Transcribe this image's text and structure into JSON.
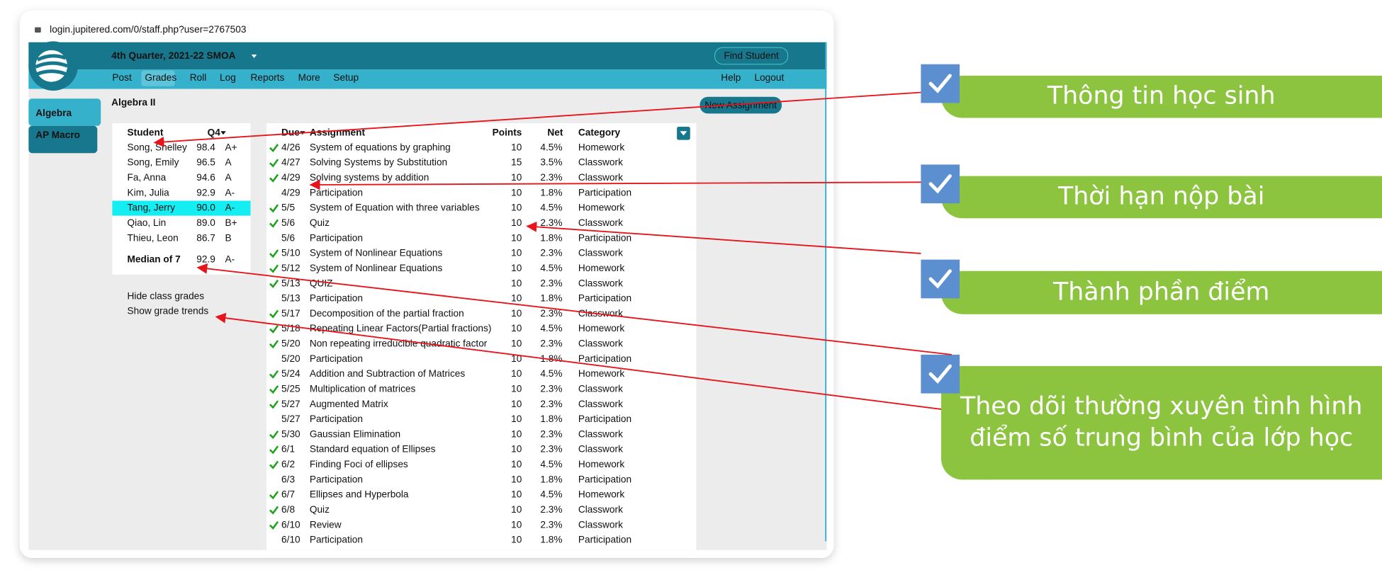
{
  "url": "login.jupitered.com/0/staff.php?user=2767503",
  "header": {
    "term": "4th Quarter, 2021-22 SMOA",
    "find_student": "Find Student",
    "nav": [
      "Post",
      "Grades",
      "Roll",
      "Log",
      "Reports",
      "More",
      "Setup"
    ],
    "help": "Help",
    "logout": "Logout"
  },
  "sidebar": [
    "Algebra",
    "AP Macro"
  ],
  "class_title": "Algebra II",
  "new_assignment": "New Assignment",
  "students": {
    "columns": [
      "Student",
      "Q4"
    ],
    "rows": [
      [
        "Song, Shelley",
        "98.4",
        "A+"
      ],
      [
        "Song, Emily",
        "96.5",
        "A"
      ],
      [
        "Fa, Anna",
        "94.6",
        "A"
      ],
      [
        "Kim, Julia",
        "92.9",
        "A-"
      ],
      [
        "Tang, Jerry",
        "90.0",
        "A-"
      ],
      [
        "Qiao, Lin",
        "89.0",
        "B+"
      ],
      [
        "Thieu, Leon",
        "86.7",
        "B"
      ]
    ],
    "highlighted_row": 4,
    "median": [
      "Median of 7",
      "92.9",
      "A-"
    ]
  },
  "links": [
    "Hide class grades",
    "Show grade trends"
  ],
  "assignments": {
    "columns": [
      "Due",
      "Assignment",
      "Points",
      "Net",
      "Category"
    ],
    "rows": [
      {
        "checked": true,
        "due": "4/26",
        "assignment": "System of equations by graphing",
        "points": "10",
        "net": "4.5%",
        "category": "Homework"
      },
      {
        "checked": true,
        "due": "4/27",
        "assignment": "Solving Systems by Substitution",
        "points": "15",
        "net": "3.5%",
        "category": "Classwork"
      },
      {
        "checked": true,
        "due": "4/29",
        "assignment": "Solving systems by addition",
        "points": "10",
        "net": "2.3%",
        "category": "Classwork"
      },
      {
        "checked": false,
        "due": "4/29",
        "assignment": "Participation",
        "points": "10",
        "net": "1.8%",
        "category": "Participation"
      },
      {
        "checked": true,
        "due": "5/5",
        "assignment": "System of Equation with three variables",
        "points": "10",
        "net": "4.5%",
        "category": "Homework"
      },
      {
        "checked": true,
        "due": "5/6",
        "assignment": "Quiz",
        "points": "10",
        "net": "2.3%",
        "category": "Classwork"
      },
      {
        "checked": false,
        "due": "5/6",
        "assignment": "Participation",
        "points": "10",
        "net": "1.8%",
        "category": "Participation"
      },
      {
        "checked": true,
        "due": "5/10",
        "assignment": "System of Nonlinear Equations",
        "points": "10",
        "net": "2.3%",
        "category": "Classwork"
      },
      {
        "checked": true,
        "due": "5/12",
        "assignment": "System of Nonlinear Equations",
        "points": "10",
        "net": "4.5%",
        "category": "Homework"
      },
      {
        "checked": true,
        "due": "5/13",
        "assignment": "QUIZ",
        "points": "10",
        "net": "2.3%",
        "category": "Classwork"
      },
      {
        "checked": false,
        "due": "5/13",
        "assignment": "Participation",
        "points": "10",
        "net": "1.8%",
        "category": "Participation"
      },
      {
        "checked": true,
        "due": "5/17",
        "assignment": "Decomposition of the partial fraction",
        "points": "10",
        "net": "2.3%",
        "category": "Classwork"
      },
      {
        "checked": true,
        "due": "5/18",
        "assignment": "Repeating Linear Factors(Partial fractions)",
        "points": "10",
        "net": "4.5%",
        "category": "Homework"
      },
      {
        "checked": true,
        "due": "5/20",
        "assignment": "Non repeating irreducible quadratic factor",
        "points": "10",
        "net": "2.3%",
        "category": "Classwork"
      },
      {
        "checked": false,
        "due": "5/20",
        "assignment": "Participation",
        "points": "10",
        "net": "1.8%",
        "category": "Participation"
      },
      {
        "checked": true,
        "due": "5/24",
        "assignment": "Addition and Subtraction of Matrices",
        "points": "10",
        "net": "4.5%",
        "category": "Homework"
      },
      {
        "checked": true,
        "due": "5/25",
        "assignment": "Multiplication of matrices",
        "points": "10",
        "net": "2.3%",
        "category": "Classwork"
      },
      {
        "checked": true,
        "due": "5/27",
        "assignment": "Augmented Matrix",
        "points": "10",
        "net": "2.3%",
        "category": "Classwork"
      },
      {
        "checked": false,
        "due": "5/27",
        "assignment": "Participation",
        "points": "10",
        "net": "1.8%",
        "category": "Participation"
      },
      {
        "checked": true,
        "due": "5/30",
        "assignment": "Gaussian Elimination",
        "points": "10",
        "net": "2.3%",
        "category": "Classwork"
      },
      {
        "checked": true,
        "due": "6/1",
        "assignment": "Standard equation of Ellipses",
        "points": "10",
        "net": "2.3%",
        "category": "Classwork"
      },
      {
        "checked": true,
        "due": "6/2",
        "assignment": "Finding Foci of ellipses",
        "points": "10",
        "net": "4.5%",
        "category": "Homework"
      },
      {
        "checked": false,
        "due": "6/3",
        "assignment": "Participation",
        "points": "10",
        "net": "1.8%",
        "category": "Participation"
      },
      {
        "checked": true,
        "due": "6/7",
        "assignment": "Ellipses and Hyperbola",
        "points": "10",
        "net": "4.5%",
        "category": "Homework"
      },
      {
        "checked": true,
        "due": "6/8",
        "assignment": "Quiz",
        "points": "10",
        "net": "2.3%",
        "category": "Classwork"
      },
      {
        "checked": true,
        "due": "6/10",
        "assignment": "Review",
        "points": "10",
        "net": "2.3%",
        "category": "Classwork"
      },
      {
        "checked": false,
        "due": "6/10",
        "assignment": "Participation",
        "points": "10",
        "net": "1.8%",
        "category": "Participation"
      }
    ]
  },
  "callouts": [
    {
      "lines": [
        "Thông tin học sinh"
      ]
    },
    {
      "lines": [
        "Thời hạn nộp bài"
      ]
    },
    {
      "lines": [
        "Thành phần điểm"
      ]
    },
    {
      "lines": [
        "Theo dõi thường xuyên tình hình",
        "điểm số trung bình của lớp học"
      ]
    }
  ]
}
